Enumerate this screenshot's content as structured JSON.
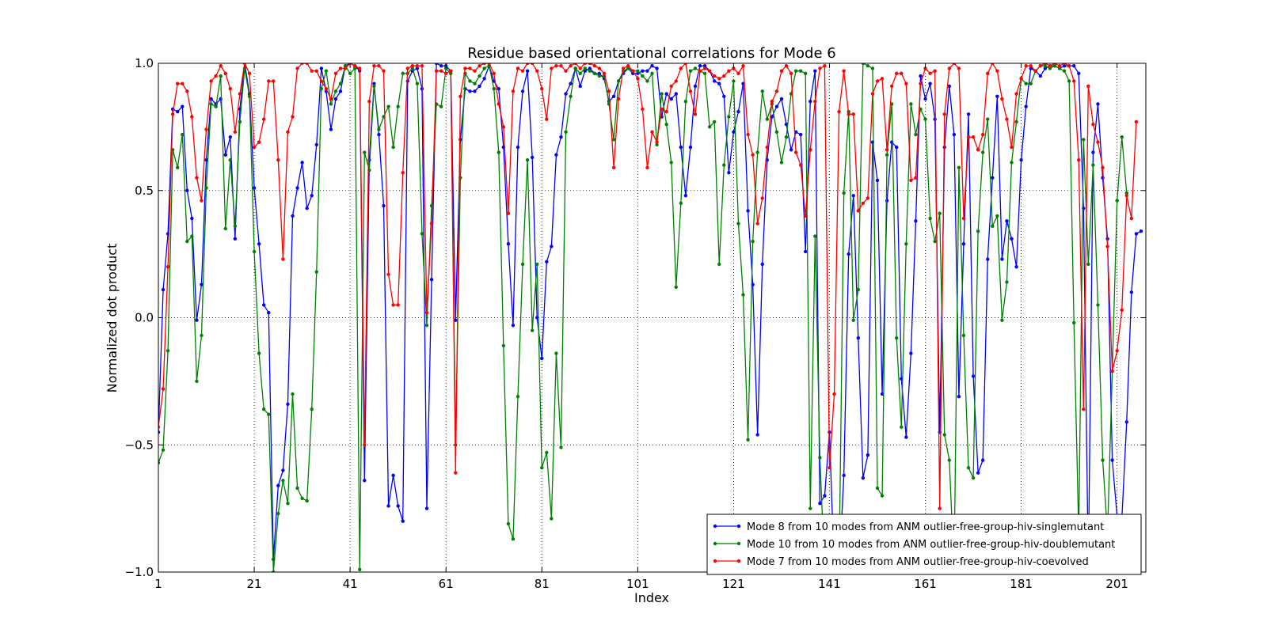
{
  "chart_data": {
    "type": "line",
    "title": "Residue based orientational correlations for Mode 6",
    "xlabel": "Index",
    "ylabel": "Normalized dot product",
    "xlim": [
      1,
      207
    ],
    "ylim": [
      -1.0,
      1.0
    ],
    "xticks": [
      1,
      21,
      41,
      61,
      81,
      101,
      121,
      141,
      161,
      181,
      201
    ],
    "yticks": [
      -1.0,
      -0.5,
      0.0,
      0.5,
      1.0
    ],
    "ytick_labels": [
      "−1.0",
      "−0.5",
      "0.0",
      "0.5",
      "1.0"
    ],
    "grid": true,
    "legend_position": "lower-right",
    "series": [
      {
        "name": "Mode 8 from 10 modes from ANM outlier-free-group-hiv-singlemutant",
        "color": "#0000ff",
        "values": [
          -0.45,
          0.11,
          0.33,
          0.82,
          0.81,
          0.83,
          0.5,
          0.39,
          -0.01,
          0.13,
          0.62,
          0.86,
          0.84,
          0.86,
          0.64,
          0.71,
          0.31,
          0.82,
          1.0,
          0.88,
          0.51,
          0.29,
          0.05,
          0.02,
          -0.95,
          -0.66,
          -0.6,
          -0.34,
          0.4,
          0.51,
          0.61,
          0.43,
          0.48,
          0.68,
          0.98,
          0.89,
          0.74,
          0.86,
          0.89,
          0.99,
          1.0,
          0.99,
          0.97,
          -0.64,
          0.62,
          0.92,
          0.72,
          0.44,
          -0.74,
          -0.62,
          -0.74,
          -0.8,
          0.93,
          0.97,
          0.98,
          0.9,
          -0.75,
          0.15,
          1.0,
          0.99,
          0.99,
          0.97,
          -0.01,
          0.7,
          0.9,
          0.89,
          0.89,
          0.91,
          0.94,
          0.99,
          0.93,
          0.9,
          0.67,
          0.29,
          -0.03,
          0.67,
          0.89,
          0.97,
          0.63,
          0.0,
          -0.16,
          0.22,
          0.28,
          0.64,
          0.71,
          0.88,
          0.92,
          0.98,
          0.91,
          0.97,
          0.98,
          0.96,
          0.96,
          0.94,
          0.85,
          0.87,
          0.93,
          0.96,
          0.98,
          0.96,
          0.96,
          0.97,
          0.97,
          0.99,
          0.98,
          0.79,
          0.88,
          0.86,
          0.88,
          0.67,
          0.48,
          0.67,
          0.91,
          0.99,
          0.99,
          0.97,
          0.93,
          0.92,
          0.87,
          0.57,
          0.73,
          0.81,
          0.92,
          0.42,
          0.13,
          -0.46,
          0.21,
          0.62,
          0.79,
          0.83,
          0.86,
          0.76,
          0.66,
          0.73,
          0.72,
          0.26,
          0.85,
          0.97,
          -0.73,
          -0.7,
          -0.45,
          -1.0,
          -1.0,
          -0.62,
          0.25,
          0.48,
          -0.08,
          -0.63,
          -0.54,
          0.69,
          0.54,
          -0.3,
          0.46,
          0.69,
          0.67,
          -0.24,
          -0.47,
          -0.14,
          0.38,
          0.95,
          0.86,
          0.92,
          0.78,
          -0.45,
          0.67,
          0.91,
          0.72,
          -0.31,
          0.29,
          0.8,
          -0.23,
          -0.61,
          -0.56,
          0.23,
          0.55,
          0.87,
          0.23,
          0.38,
          0.31,
          0.2,
          0.62,
          0.83,
          0.98,
          0.97,
          0.95,
          0.98,
          0.99,
          0.99,
          0.98,
          0.99,
          0.99,
          0.99,
          0.96,
          0.43,
          -0.99,
          0.65,
          0.84,
          0.55,
          0.31,
          -0.56,
          -0.78,
          -0.79,
          -0.41,
          0.1,
          0.33,
          0.34
        ]
      },
      {
        "name": "Mode 10 from 10 modes from ANM outlier-free-group-hiv-doublemutant",
        "color": "#008000",
        "values": [
          -0.57,
          -0.52,
          -0.13,
          0.66,
          0.59,
          0.72,
          0.3,
          0.32,
          -0.25,
          -0.07,
          0.51,
          0.84,
          0.83,
          0.95,
          0.35,
          0.62,
          0.36,
          0.77,
          0.98,
          0.87,
          0.26,
          -0.14,
          -0.36,
          -0.38,
          -1.0,
          -0.77,
          -0.64,
          -0.73,
          -0.3,
          -0.67,
          -0.71,
          -0.72,
          -0.36,
          0.18,
          0.9,
          0.97,
          0.84,
          0.89,
          0.92,
          0.99,
          0.96,
          0.98,
          -0.99,
          0.65,
          0.58,
          0.91,
          0.74,
          0.79,
          0.83,
          0.67,
          0.83,
          0.96,
          0.96,
          0.98,
          0.92,
          0.33,
          -0.03,
          0.44,
          0.84,
          0.83,
          0.98,
          0.96,
          -0.5,
          0.55,
          0.96,
          0.93,
          0.92,
          0.95,
          0.98,
          0.99,
          0.9,
          0.65,
          -0.11,
          -0.81,
          -0.87,
          -0.31,
          0.21,
          0.62,
          -0.05,
          0.21,
          -0.59,
          -0.53,
          -0.79,
          -0.14,
          -0.51,
          0.73,
          0.87,
          0.98,
          0.96,
          0.98,
          0.97,
          0.96,
          0.95,
          0.95,
          0.84,
          0.7,
          0.93,
          0.97,
          0.98,
          0.97,
          0.97,
          0.95,
          0.93,
          0.96,
          0.68,
          0.88,
          0.76,
          0.61,
          0.12,
          0.45,
          0.85,
          0.97,
          0.98,
          0.97,
          0.96,
          0.75,
          0.77,
          0.21,
          0.6,
          0.79,
          0.93,
          0.37,
          0.09,
          -0.48,
          0.3,
          0.65,
          0.89,
          0.78,
          0.84,
          0.73,
          0.61,
          0.71,
          0.88,
          0.97,
          0.97,
          0.96,
          -0.75,
          0.32,
          -0.55,
          -1.0,
          -1.0,
          -1.0,
          -1.0,
          0.49,
          0.81,
          -0.01,
          0.11,
          1.0,
          0.99,
          0.98,
          -0.67,
          -0.7,
          0.64,
          0.84,
          -0.08,
          -0.43,
          0.29,
          0.84,
          0.72,
          0.82,
          0.78,
          0.39,
          0.3,
          0.41,
          -0.46,
          -0.56,
          -0.99,
          0.59,
          -0.07,
          -0.59,
          -0.63,
          0.34,
          0.65,
          0.78,
          0.36,
          0.4,
          -0.01,
          0.14,
          0.61,
          0.77,
          0.94,
          0.92,
          0.92,
          0.97,
          0.99,
          0.99,
          0.98,
          0.99,
          0.98,
          0.97,
          0.93,
          -0.02,
          -0.85,
          0.7,
          0.21,
          0.6,
          0.05,
          -0.56,
          -0.85,
          -0.21,
          0.46,
          0.71,
          0.49
        ]
      },
      {
        "name": "Mode 7 from 10 modes from ANM outlier-free-group-hiv-coevolved",
        "color": "#ff0000",
        "values": [
          -0.43,
          -0.28,
          0.2,
          0.8,
          0.92,
          0.92,
          0.89,
          0.79,
          0.55,
          0.46,
          0.74,
          0.93,
          0.95,
          0.99,
          0.96,
          0.9,
          0.73,
          0.88,
          1.0,
          0.96,
          0.67,
          0.69,
          0.78,
          0.93,
          0.93,
          0.62,
          0.23,
          0.73,
          0.79,
          0.98,
          1.0,
          1.0,
          0.97,
          0.97,
          0.93,
          0.9,
          0.86,
          0.96,
          0.98,
          0.98,
          1.0,
          0.99,
          0.98,
          -0.5,
          0.85,
          0.99,
          0.99,
          0.97,
          0.17,
          0.05,
          0.05,
          0.57,
          0.98,
          0.99,
          0.99,
          0.99,
          0.02,
          0.37,
          0.97,
          0.97,
          0.96,
          0.97,
          -0.61,
          0.87,
          0.98,
          0.98,
          0.97,
          0.99,
          1.0,
          1.0,
          0.96,
          0.84,
          0.75,
          0.41,
          0.89,
          0.98,
          0.97,
          1.0,
          1.0,
          0.97,
          0.9,
          0.78,
          0.98,
          0.99,
          0.99,
          0.97,
          0.99,
          1.0,
          0.98,
          1.0,
          1.0,
          0.99,
          0.98,
          0.96,
          0.89,
          0.59,
          0.86,
          0.98,
          0.99,
          0.97,
          0.94,
          0.82,
          0.59,
          0.73,
          0.69,
          0.82,
          0.81,
          0.91,
          0.93,
          0.98,
          1.0,
          0.89,
          0.8,
          0.97,
          0.98,
          0.97,
          0.95,
          0.94,
          0.95,
          0.97,
          0.98,
          0.96,
          0.99,
          0.72,
          0.64,
          0.37,
          0.47,
          0.67,
          0.85,
          0.89,
          0.97,
          0.99,
          0.96,
          0.65,
          0.6,
          0.4,
          0.66,
          0.85,
          0.98,
          0.99,
          -0.59,
          -0.3,
          0.81,
          0.97,
          0.8,
          0.8,
          0.42,
          0.45,
          0.47,
          0.88,
          0.93,
          0.94,
          0.66,
          0.91,
          0.96,
          0.96,
          0.92,
          0.54,
          0.55,
          0.92,
          0.98,
          0.96,
          0.97,
          -0.75,
          0.8,
          0.98,
          1.0,
          0.98,
          0.39,
          0.71,
          0.71,
          0.66,
          0.72,
          0.96,
          1.0,
          0.97,
          0.86,
          0.78,
          0.67,
          0.88,
          0.94,
          0.99,
          0.99,
          0.97,
          0.99,
          1.0,
          0.99,
          1.0,
          0.99,
          1.0,
          0.99,
          0.93,
          0.62,
          -0.36,
          0.91,
          0.76,
          0.69,
          0.59,
          0.28,
          -0.21,
          -0.13,
          0.03,
          0.48,
          0.39,
          0.77
        ]
      }
    ]
  }
}
